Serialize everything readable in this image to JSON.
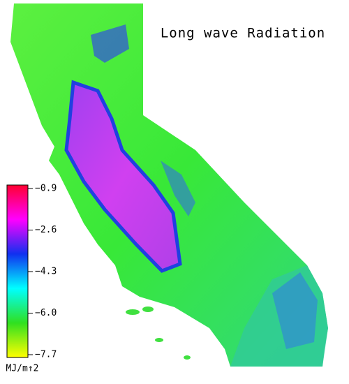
{
  "title": "Long wave Radiation",
  "colorbar": {
    "lim": [
      -7.7,
      -0.9
    ],
    "ticks": [
      {
        "value": -0.9,
        "label": "−0.9"
      },
      {
        "value": -2.6,
        "label": "−2.6"
      },
      {
        "value": -4.3,
        "label": "−4.3"
      },
      {
        "value": -6.0,
        "label": "−6.0"
      },
      {
        "value": -7.7,
        "label": "−7.7"
      }
    ],
    "colors": [
      "#ffff00",
      "#30e020",
      "#00ffff",
      "#1030f0",
      "#ff00ff",
      "#ff0030"
    ],
    "unit": "MJ/m↑2"
  }
}
